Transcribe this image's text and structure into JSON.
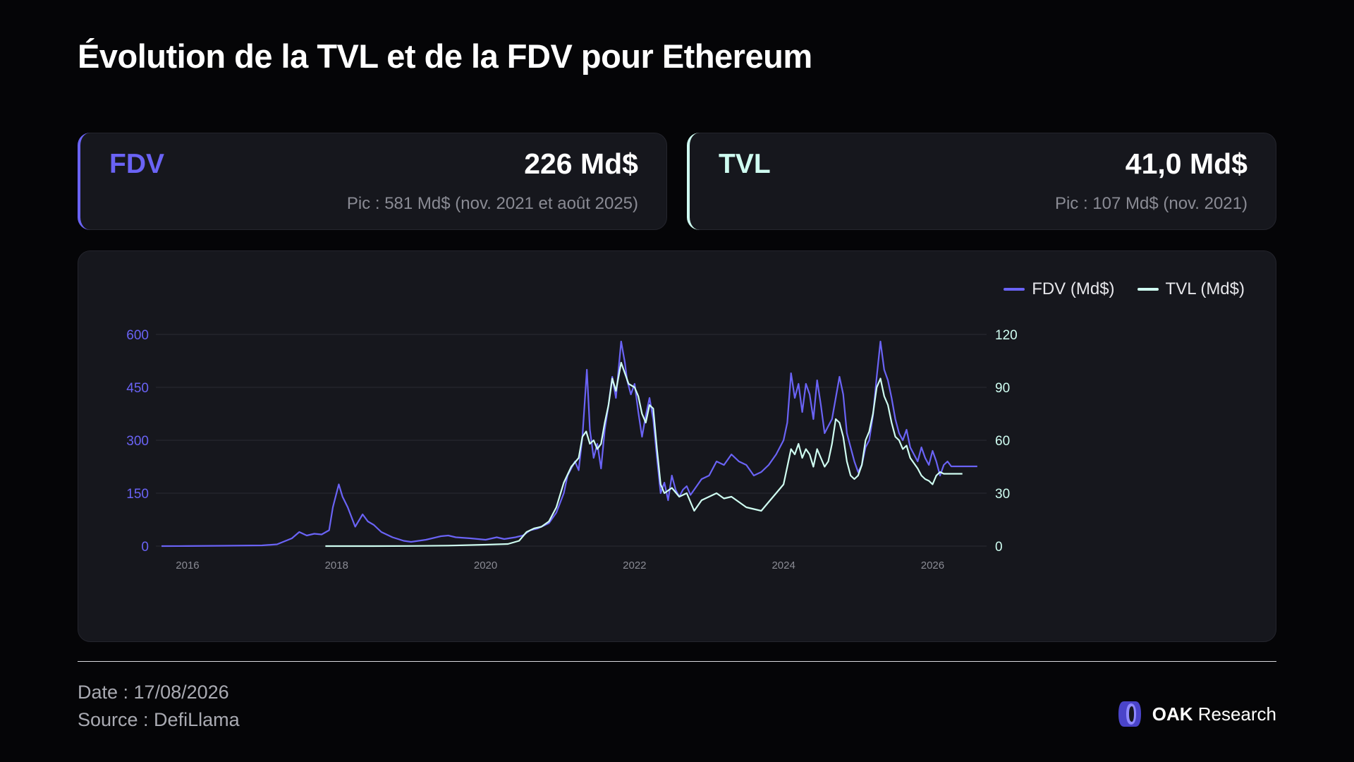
{
  "title": "Évolution de la TVL et de la FDV pour Ethereum",
  "cards": {
    "fdv": {
      "label": "FDV",
      "value": "226 Md$",
      "peak": "Pic : 581 Md$ (nov. 2021 et août 2025)",
      "color": "#6a63f5"
    },
    "tvl": {
      "label": "TVL",
      "value": "41,0 Md$",
      "peak": "Pic : 107 Md$ (nov. 2021)",
      "color": "#cffdf1"
    }
  },
  "chart_data": {
    "type": "line",
    "title": "",
    "xlabel": "",
    "x_ticks": [
      "2016",
      "2018",
      "2020",
      "2022",
      "2024",
      "2026"
    ],
    "x_range": [
      2015.65,
      2026.63
    ],
    "y_left": {
      "ticks": [
        "0",
        "150",
        "300",
        "450",
        "600"
      ],
      "range": [
        0,
        600
      ],
      "color": "#6a63f5"
    },
    "y_right": {
      "ticks": [
        "0",
        "30",
        "60",
        "90",
        "120"
      ],
      "range": [
        0,
        120
      ],
      "color": "#cffdf1"
    },
    "grid": true,
    "legend": "top-right",
    "series": [
      {
        "name": "FDV (Md$)",
        "axis": "left",
        "color": "#6a63f5",
        "x": [
          2015.65,
          2016.0,
          2016.5,
          2017.0,
          2017.2,
          2017.4,
          2017.5,
          2017.6,
          2017.7,
          2017.8,
          2017.9,
          2017.95,
          2018.03,
          2018.08,
          2018.15,
          2018.25,
          2018.35,
          2018.42,
          2018.5,
          2018.6,
          2018.75,
          2018.9,
          2019.0,
          2019.2,
          2019.4,
          2019.5,
          2019.6,
          2019.8,
          2020.0,
          2020.15,
          2020.25,
          2020.4,
          2020.5,
          2020.6,
          2020.7,
          2020.85,
          2020.95,
          2021.05,
          2021.1,
          2021.2,
          2021.25,
          2021.3,
          2021.36,
          2021.4,
          2021.45,
          2021.5,
          2021.55,
          2021.6,
          2021.65,
          2021.7,
          2021.75,
          2021.82,
          2021.87,
          2021.9,
          2021.95,
          2022.0,
          2022.05,
          2022.1,
          2022.15,
          2022.2,
          2022.25,
          2022.3,
          2022.35,
          2022.4,
          2022.45,
          2022.5,
          2022.55,
          2022.6,
          2022.65,
          2022.7,
          2022.75,
          2022.8,
          2022.9,
          2023.0,
          2023.1,
          2023.2,
          2023.3,
          2023.4,
          2023.5,
          2023.6,
          2023.7,
          2023.8,
          2023.9,
          2024.0,
          2024.05,
          2024.1,
          2024.15,
          2024.2,
          2024.25,
          2024.3,
          2024.35,
          2024.4,
          2024.45,
          2024.5,
          2024.55,
          2024.6,
          2024.65,
          2024.7,
          2024.75,
          2024.8,
          2024.85,
          2024.9,
          2024.95,
          2025.0,
          2025.05,
          2025.1,
          2025.15,
          2025.2,
          2025.25,
          2025.3,
          2025.35,
          2025.4,
          2025.45,
          2025.5,
          2025.55,
          2025.6,
          2025.65,
          2025.7,
          2025.75,
          2025.8,
          2025.85,
          2025.9,
          2025.95,
          2026.0,
          2026.05,
          2026.1,
          2026.15,
          2026.2,
          2026.25,
          2026.3,
          2026.35,
          2026.4,
          2026.45,
          2026.5,
          2026.55,
          2026.6
        ],
        "values": [
          0,
          0.3,
          1,
          2,
          5,
          22,
          40,
          30,
          35,
          33,
          45,
          110,
          175,
          140,
          110,
          55,
          90,
          70,
          60,
          40,
          25,
          15,
          12,
          18,
          28,
          30,
          25,
          22,
          18,
          25,
          20,
          25,
          30,
          45,
          50,
          65,
          95,
          150,
          200,
          240,
          215,
          310,
          500,
          330,
          250,
          290,
          220,
          330,
          400,
          480,
          420,
          580,
          520,
          470,
          430,
          460,
          380,
          310,
          370,
          420,
          360,
          250,
          150,
          180,
          130,
          200,
          160,
          140,
          160,
          170,
          145,
          160,
          190,
          200,
          240,
          230,
          260,
          240,
          230,
          200,
          210,
          230,
          260,
          300,
          350,
          490,
          420,
          460,
          380,
          460,
          430,
          360,
          470,
          400,
          320,
          340,
          360,
          420,
          480,
          430,
          320,
          280,
          240,
          210,
          230,
          280,
          300,
          370,
          480,
          580,
          500,
          470,
          420,
          360,
          320,
          300,
          330,
          280,
          260,
          240,
          280,
          250,
          230,
          270,
          240,
          200,
          230,
          240,
          226,
          226,
          226,
          226,
          226,
          226,
          226,
          226
        ]
      },
      {
        "name": "TVL (Md$)",
        "axis": "right",
        "color": "#cffdf1",
        "x": [
          2017.85,
          2018.5,
          2019.0,
          2019.5,
          2020.0,
          2020.3,
          2020.45,
          2020.55,
          2020.65,
          2020.75,
          2020.85,
          2020.95,
          2021.05,
          2021.15,
          2021.25,
          2021.3,
          2021.35,
          2021.4,
          2021.45,
          2021.5,
          2021.55,
          2021.6,
          2021.65,
          2021.7,
          2021.75,
          2021.82,
          2021.87,
          2021.92,
          2022.0,
          2022.05,
          2022.1,
          2022.15,
          2022.2,
          2022.25,
          2022.3,
          2022.35,
          2022.4,
          2022.5,
          2022.6,
          2022.7,
          2022.75,
          2022.8,
          2022.9,
          2023.0,
          2023.1,
          2023.2,
          2023.3,
          2023.4,
          2023.5,
          2023.6,
          2023.7,
          2023.8,
          2023.9,
          2024.0,
          2024.05,
          2024.1,
          2024.15,
          2024.2,
          2024.25,
          2024.3,
          2024.35,
          2024.4,
          2024.45,
          2024.5,
          2024.55,
          2024.6,
          2024.65,
          2024.7,
          2024.75,
          2024.8,
          2024.85,
          2024.9,
          2024.95,
          2025.0,
          2025.05,
          2025.1,
          2025.15,
          2025.2,
          2025.25,
          2025.3,
          2025.35,
          2025.4,
          2025.45,
          2025.5,
          2025.55,
          2025.6,
          2025.65,
          2025.7,
          2025.75,
          2025.8,
          2025.85,
          2025.9,
          2025.95,
          2026.0,
          2026.05,
          2026.1,
          2026.15,
          2026.2,
          2026.25,
          2026.3,
          2026.35,
          2026.4
        ],
        "values": [
          0,
          0,
          0.1,
          0.3,
          0.8,
          1.2,
          3,
          8,
          10,
          11,
          14,
          22,
          36,
          45,
          50,
          62,
          65,
          58,
          60,
          55,
          58,
          70,
          80,
          95,
          88,
          104,
          98,
          92,
          90,
          85,
          75,
          70,
          80,
          78,
          55,
          35,
          30,
          33,
          28,
          30,
          25,
          20,
          26,
          28,
          30,
          27,
          28,
          25,
          22,
          21,
          20,
          25,
          30,
          35,
          45,
          55,
          52,
          58,
          50,
          55,
          52,
          45,
          55,
          50,
          45,
          48,
          58,
          72,
          70,
          62,
          48,
          40,
          38,
          40,
          46,
          60,
          65,
          75,
          90,
          95,
          85,
          80,
          70,
          62,
          60,
          55,
          57,
          50,
          47,
          44,
          40,
          38,
          37,
          35,
          40,
          42,
          41,
          41,
          41,
          41,
          41,
          41
        ]
      }
    ]
  },
  "footer": {
    "date": "Date : 17/08/2026",
    "source": "Source : DefiLlama",
    "brand_bold": "OAK",
    "brand_rest": " Research"
  }
}
